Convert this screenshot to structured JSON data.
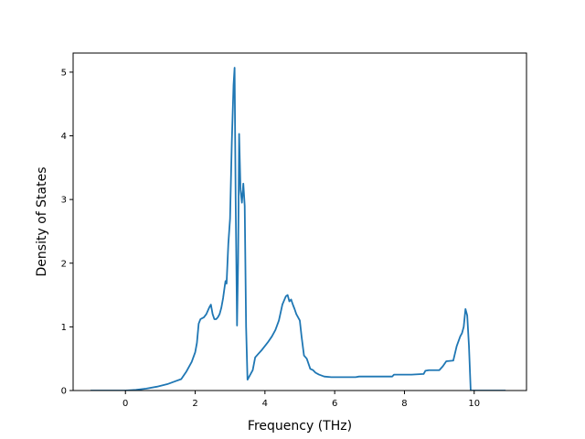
{
  "chart_data": {
    "type": "line",
    "title": "",
    "xlabel": "Frequency (THz)",
    "ylabel": "Density of States",
    "xlim": [
      -1.5,
      11.5
    ],
    "ylim": [
      0,
      5.3
    ],
    "xticks": [
      0,
      2,
      4,
      6,
      8,
      10
    ],
    "yticks": [
      0,
      1,
      2,
      3,
      4,
      5
    ],
    "grid": false,
    "legend": "none",
    "colors": {
      "series": "#1f77b4"
    },
    "series": [
      {
        "x": [
          -1.0,
          -0.5,
          0.0,
          0.3,
          0.6,
          0.9,
          1.2,
          1.45,
          1.6,
          1.75,
          1.9,
          2.0,
          2.05,
          2.1,
          2.15,
          2.25,
          2.32,
          2.4,
          2.45,
          2.5,
          2.55,
          2.6,
          2.65,
          2.7,
          2.75,
          2.8,
          2.85,
          2.87,
          2.9,
          2.95,
          3.0,
          3.05,
          3.1,
          3.13,
          3.16,
          3.2,
          3.23,
          3.26,
          3.3,
          3.34,
          3.38,
          3.42,
          3.46,
          3.5,
          3.55,
          3.6,
          3.65,
          3.72,
          3.8,
          3.9,
          4.0,
          4.1,
          4.2,
          4.3,
          4.4,
          4.5,
          4.6,
          4.65,
          4.7,
          4.75,
          4.8,
          4.85,
          4.9,
          4.95,
          5.0,
          5.05,
          5.12,
          5.2,
          5.3,
          5.38,
          5.45,
          5.55,
          5.7,
          5.9,
          6.2,
          6.6,
          6.7,
          7.2,
          7.65,
          7.7,
          8.2,
          8.55,
          8.6,
          8.7,
          8.9,
          9.0,
          9.1,
          9.2,
          9.4,
          9.5,
          9.6,
          9.65,
          9.7,
          9.75,
          9.8,
          9.85,
          9.9,
          9.95,
          10.0,
          10.5,
          10.9
        ],
        "values": [
          0.0,
          0.0,
          0.0,
          0.01,
          0.03,
          0.06,
          0.1,
          0.15,
          0.18,
          0.3,
          0.45,
          0.6,
          0.75,
          1.05,
          1.12,
          1.15,
          1.2,
          1.3,
          1.35,
          1.2,
          1.12,
          1.12,
          1.15,
          1.2,
          1.3,
          1.45,
          1.65,
          1.72,
          1.68,
          2.3,
          2.7,
          3.9,
          4.8,
          5.07,
          3.0,
          1.02,
          2.0,
          4.03,
          3.15,
          2.95,
          3.25,
          2.9,
          1.0,
          0.17,
          0.22,
          0.27,
          0.32,
          0.52,
          0.57,
          0.63,
          0.7,
          0.77,
          0.85,
          0.95,
          1.1,
          1.35,
          1.48,
          1.5,
          1.4,
          1.43,
          1.35,
          1.28,
          1.2,
          1.15,
          1.1,
          0.85,
          0.55,
          0.5,
          0.34,
          0.32,
          0.28,
          0.25,
          0.22,
          0.21,
          0.21,
          0.21,
          0.22,
          0.22,
          0.22,
          0.25,
          0.25,
          0.26,
          0.31,
          0.32,
          0.32,
          0.32,
          0.38,
          0.46,
          0.47,
          0.7,
          0.85,
          0.9,
          1.0,
          1.28,
          1.18,
          0.7,
          0.0,
          0.0,
          0.0,
          0.0,
          0.0
        ]
      }
    ]
  }
}
